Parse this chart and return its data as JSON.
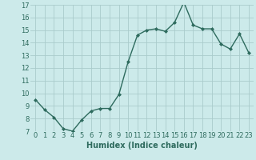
{
  "x": [
    0,
    1,
    2,
    3,
    4,
    5,
    6,
    7,
    8,
    9,
    10,
    11,
    12,
    13,
    14,
    15,
    16,
    17,
    18,
    19,
    20,
    21,
    22,
    23
  ],
  "y": [
    9.5,
    8.7,
    8.1,
    7.2,
    7.0,
    7.9,
    8.6,
    8.8,
    8.8,
    9.9,
    12.5,
    14.6,
    15.0,
    15.1,
    14.9,
    15.6,
    17.2,
    15.4,
    15.1,
    15.1,
    13.9,
    13.5,
    14.7,
    13.2
  ],
  "line_color": "#2e6b5e",
  "marker": "D",
  "marker_size": 2.0,
  "line_width": 1.0,
  "bg_color": "#cceaea",
  "grid_color": "#aacccc",
  "xlabel": "Humidex (Indice chaleur)",
  "xlabel_fontsize": 7,
  "ylim": [
    7,
    17
  ],
  "yticks": [
    7,
    8,
    9,
    10,
    11,
    12,
    13,
    14,
    15,
    16,
    17
  ],
  "xticks": [
    0,
    1,
    2,
    3,
    4,
    5,
    6,
    7,
    8,
    9,
    10,
    11,
    12,
    13,
    14,
    15,
    16,
    17,
    18,
    19,
    20,
    21,
    22,
    23
  ],
  "tick_fontsize": 6,
  "tick_color": "#2e6b5e"
}
